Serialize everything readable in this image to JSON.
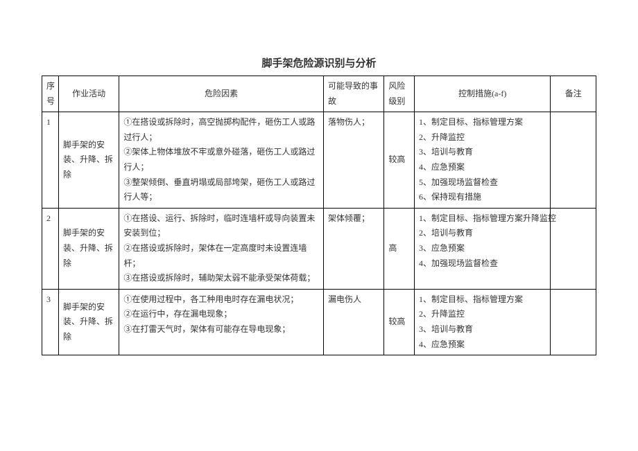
{
  "page_title": "脚手架危险源识别与分析",
  "headers": {
    "num": "序号",
    "activity": "作业活动",
    "hazard": "危险因素",
    "accident": "可能导致的事故",
    "risk": "风险级别",
    "control": "控制措施(a-f)",
    "note": "备注"
  },
  "rows": [
    {
      "num": "1",
      "activity": "脚手架的安装、升降、拆除",
      "hazard": "①在搭设或拆除时，高空抛掷构配件，砸伤工人或路过行人；\n②架体上物体堆放不牢或意外碰落，砸伤工人或路过行人；\n③整架倾倒、垂直坍塌或局部垮架，砸伤工人或路过行人等；",
      "accident": "落物伤人；",
      "risk": "较高",
      "control": [
        "1、制定目标、指标管理方案",
        "2、升降监控",
        "3、培训与教育",
        "4、应急预案",
        "5、加强现场监督检查",
        "6、保持现有措施"
      ],
      "note": ""
    },
    {
      "num": "2",
      "activity": "脚手架的安装、升降、拆除",
      "hazard": "①在搭设、运行、拆除时，临时连墙杆或导向装置未安装到位；\n②在搭设或拆除时，架体在一定高度时未设置连墙杆；\n③在搭设或拆除时，辅助架太弱不能承受架体荷载；",
      "accident": "架体倾覆；",
      "risk": "高",
      "control": [
        "1、制定目标、指标管理方案升降监控",
        "2、培训与教育",
        "3、应急预案",
        "4、加强现场监督检查"
      ],
      "note": ""
    },
    {
      "num": "3",
      "activity": "脚手架的安装、升降、拆除",
      "hazard": "①在使用过程中，各工种用电时存在漏电状况；\n②在运行中，存在漏电现象；\n③在打雷天气时，架体有可能存在导电现象；",
      "accident": "漏电伤人",
      "risk": "较高",
      "control": [
        "1、制定目标、指标管理方案",
        "2、升降监控",
        "3、培训与教育",
        "4、应急预案"
      ],
      "note": ""
    }
  ]
}
